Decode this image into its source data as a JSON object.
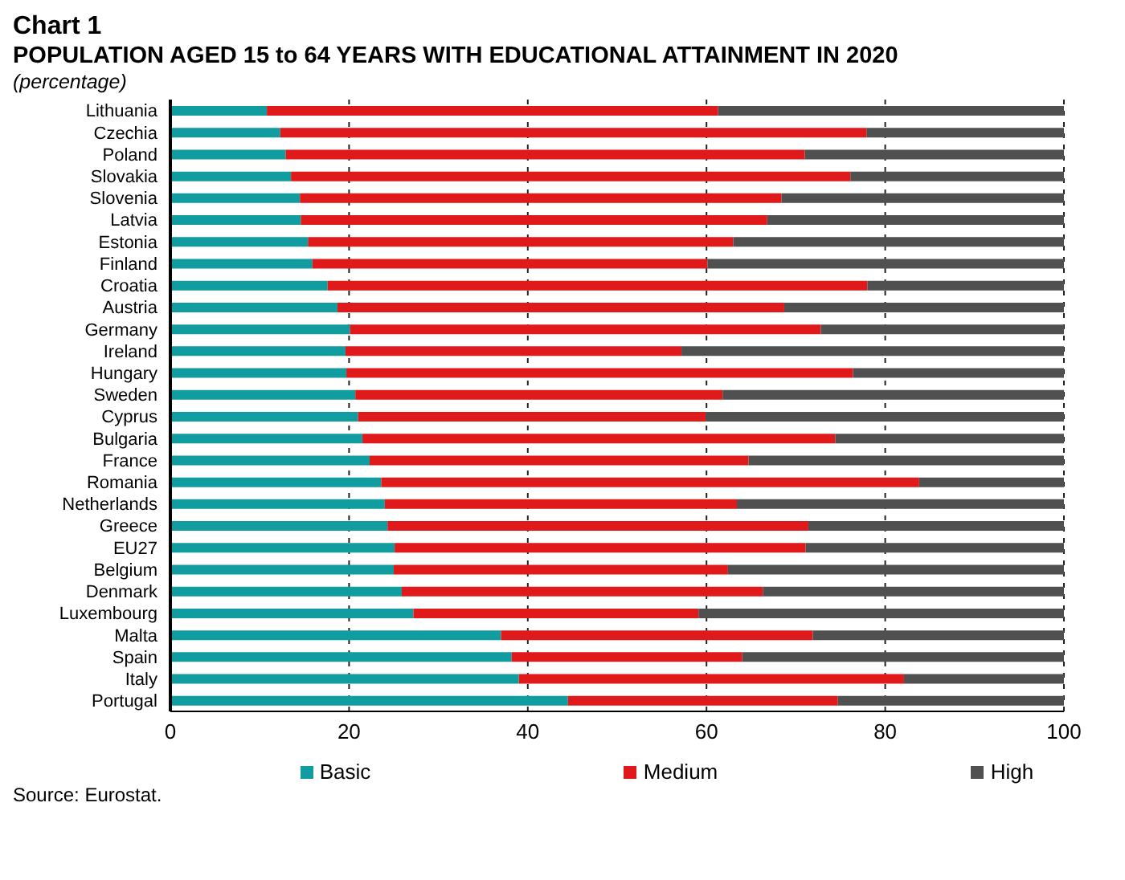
{
  "chart_data": {
    "type": "bar",
    "title": "Chart 1",
    "subtitle": "POPULATION AGED 15 to 64 YEARS WITH EDUCATIONAL ATTAINMENT IN 2020",
    "annotations": [
      "(percentage)",
      "Source: Eurostat."
    ],
    "orientation": "horizontal",
    "stacked": true,
    "categories": [
      "Lithuania",
      "Czechia",
      "Poland",
      "Slovakia",
      "Slovenia",
      "Latvia",
      "Estonia",
      "Finland",
      "Croatia",
      "Austria",
      "Germany",
      "Ireland",
      "Hungary",
      "Sweden",
      "Cyprus",
      "Bulgaria",
      "France",
      "Romania",
      "Netherlands",
      "Greece",
      "EU27",
      "Belgium",
      "Denmark",
      "Luxembourg",
      "Malta",
      "Spain",
      "Italy",
      "Portugal"
    ],
    "series": [
      {
        "name": "Basic",
        "color": "#119ca0",
        "values": [
          10.8,
          12.3,
          12.9,
          13.5,
          14.5,
          14.6,
          15.4,
          15.9,
          17.6,
          18.7,
          20.1,
          19.6,
          19.7,
          20.7,
          21.0,
          21.5,
          22.3,
          23.6,
          24.0,
          24.3,
          25.1,
          25.0,
          25.9,
          27.2,
          37.0,
          38.2,
          39.0,
          44.5
        ]
      },
      {
        "name": "Medium",
        "color": "#e01a1a",
        "values": [
          50.5,
          65.6,
          58.1,
          62.6,
          53.9,
          52.2,
          47.6,
          44.2,
          60.4,
          50.0,
          52.7,
          37.6,
          56.7,
          41.1,
          38.9,
          52.9,
          42.4,
          60.2,
          39.4,
          47.1,
          46.0,
          37.4,
          40.4,
          31.9,
          34.9,
          25.8,
          43.1,
          30.2
        ]
      },
      {
        "name": "High",
        "color": "#505050",
        "values": [
          38.7,
          22.1,
          29.0,
          23.9,
          31.6,
          33.2,
          37.0,
          39.9,
          22.0,
          31.3,
          27.2,
          42.8,
          23.6,
          38.2,
          40.1,
          25.6,
          35.3,
          16.2,
          36.6,
          28.6,
          28.9,
          37.6,
          33.7,
          40.9,
          28.1,
          36.0,
          17.9,
          25.3
        ]
      }
    ],
    "xlim": [
      0,
      100
    ],
    "xticks": [
      0,
      20,
      40,
      60,
      80,
      100
    ],
    "grid": "x",
    "legend": "bottom"
  }
}
